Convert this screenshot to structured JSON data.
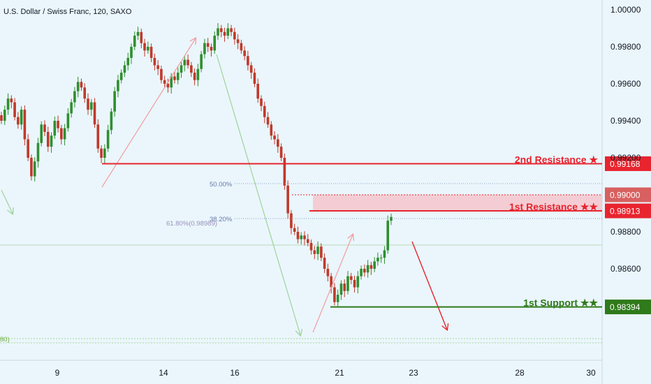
{
  "chart_data": {
    "type": "candlestick",
    "title": "U.S. Dollar / Swiss Franc, 120, SAXO",
    "x_ticks": [
      "9",
      "14",
      "16",
      "21",
      "23",
      "28",
      "30"
    ],
    "y_ticks": [
      "1.00000",
      "0.99800",
      "0.99600",
      "0.99400",
      "0.99200",
      "0.98800",
      "0.98600"
    ],
    "y_range": [
      0.9816,
      1.0012
    ],
    "levels": [
      {
        "name": "2nd Resistance ★",
        "price": 0.99168,
        "color": "#e8242f",
        "tag_color": "#e8242f"
      },
      {
        "name": "",
        "price": 0.99,
        "color": "#e8242f",
        "tag_color": "#d86060"
      },
      {
        "name": "1st Resistance ★★",
        "price": 0.98913,
        "color": "#e8242f",
        "tag_color": "#e8242f"
      },
      {
        "name": "1st Support ★★",
        "price": 0.98394,
        "color": "#2f7a1a",
        "tag_color": "#2f7a1a"
      }
    ],
    "fib_labels": {
      "fib_50": "50.00%",
      "fib_382": "38.20%",
      "fib_618": "61.80%(0.98989)",
      "fib_left": "80)"
    },
    "colors": {
      "background": "#eaf6fc",
      "up": "#2f8f2f",
      "down": "#c0392b",
      "resistance": "#e8242f",
      "support": "#2f7a1a",
      "zone": "#f4c6cb",
      "arrow_pink": "#f29ca0",
      "arrow_green": "#9fd39a"
    }
  }
}
